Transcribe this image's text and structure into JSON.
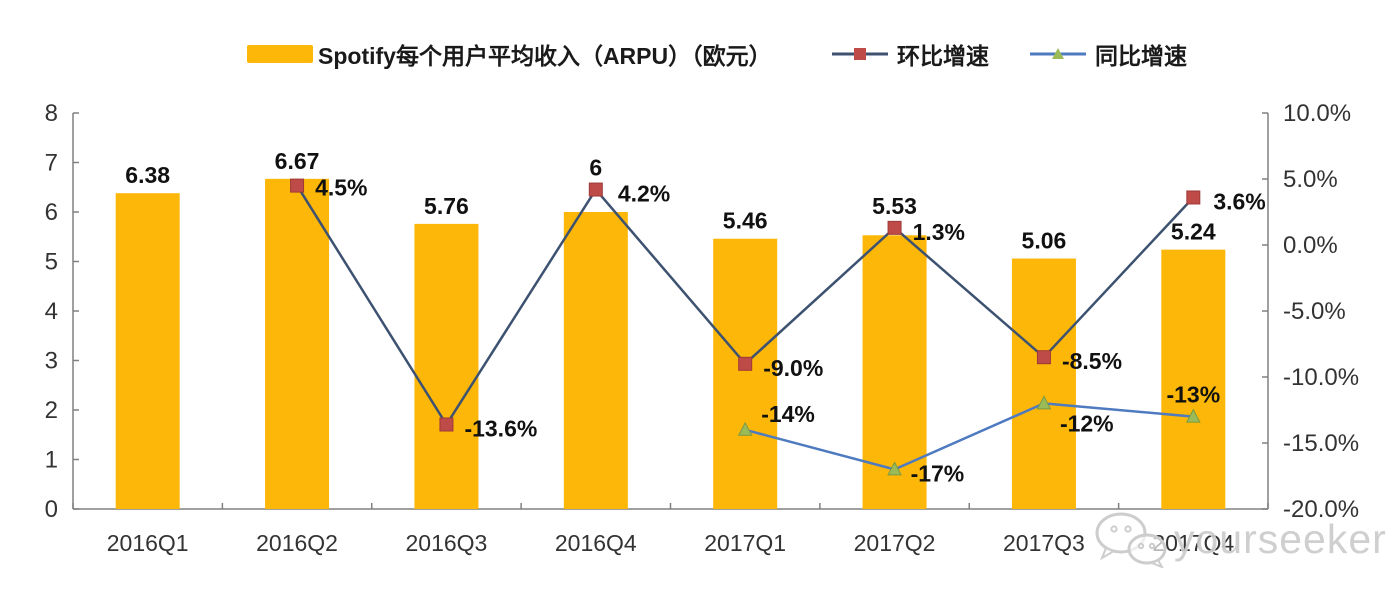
{
  "chart_data": {
    "type": "bar",
    "categories": [
      "2016Q1",
      "2016Q2",
      "2016Q3",
      "2016Q4",
      "2017Q1",
      "2017Q2",
      "2017Q3",
      "2017Q4"
    ],
    "series": [
      {
        "name": "Spotify每个用户平均收入（ARPU）（欧元）",
        "type": "bar",
        "axis": "left",
        "color": "#FCB708",
        "values": [
          6.38,
          6.67,
          5.76,
          6.0,
          5.46,
          5.53,
          5.06,
          5.24
        ],
        "labels": [
          "6.38",
          "6.67",
          "5.76",
          "6",
          "5.46",
          "5.53",
          "5.06",
          "5.24"
        ]
      },
      {
        "name": "环比增速",
        "type": "line",
        "axis": "right",
        "color": "#3D5270",
        "marker": "square",
        "marker_color": "#BE4B48",
        "values": [
          null,
          4.5,
          -13.6,
          4.2,
          -9.0,
          1.3,
          -8.5,
          3.6
        ],
        "labels": [
          null,
          "4.5%",
          "-13.6%",
          "4.2%",
          "-9.0%",
          "1.3%",
          "-8.5%",
          "3.6%"
        ]
      },
      {
        "name": "同比增速",
        "type": "line",
        "axis": "right",
        "color": "#4E7AC0",
        "marker": "triangle",
        "marker_color": "#9BBB59",
        "values": [
          null,
          null,
          null,
          null,
          -14,
          -17,
          -12,
          -13
        ],
        "labels": [
          null,
          null,
          null,
          null,
          "-14%",
          "-17%",
          "-12%",
          "-13%"
        ]
      }
    ],
    "left_axis": {
      "min": 0,
      "max": 8,
      "tick_values": [
        0,
        1,
        2,
        3,
        4,
        5,
        6,
        7,
        8
      ],
      "tick_labels": [
        "0",
        "1",
        "2",
        "3",
        "4",
        "5",
        "6",
        "7",
        "8"
      ]
    },
    "right_axis": {
      "min": -20,
      "max": 10,
      "tick_values": [
        10,
        5,
        0,
        -5,
        -10,
        -15,
        -20
      ],
      "tick_labels": [
        "10.0%",
        "5.0%",
        "0.0%",
        "-5.0%",
        "-10.0%",
        "-15.0%",
        "-20.0%"
      ]
    },
    "grid": false,
    "legend_position": "top",
    "axis_color": "#808080",
    "tick_text_color": "#333333",
    "label_text_color": "#111111"
  },
  "watermark": {
    "text": "yourseeker"
  }
}
